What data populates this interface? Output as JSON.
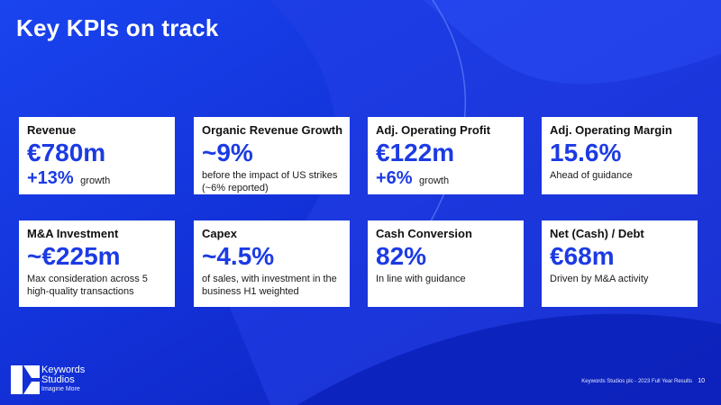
{
  "slide": {
    "title": "Key KPIs on track"
  },
  "kpis": [
    {
      "title": "Revenue",
      "value": "€780m",
      "growth_value": "+13%",
      "growth_text": "growth"
    },
    {
      "title": "Organic Revenue Growth",
      "value": "~9%",
      "description": "before the impact of US strikes (~6% reported)"
    },
    {
      "title": "Adj. Operating Profit",
      "value": "€122m",
      "growth_value": "+6%",
      "growth_text": "growth"
    },
    {
      "title": "Adj. Operating Margin",
      "value": "15.6%",
      "description": "Ahead of guidance"
    },
    {
      "title": "M&A Investment",
      "value": "~€225m",
      "description": "Max consideration across 5 high-quality transactions"
    },
    {
      "title": "Capex",
      "value": "~4.5%",
      "description": "of sales, with investment in the business H1 weighted"
    },
    {
      "title": "Cash Conversion",
      "value": "82%",
      "description": "In line with guidance"
    },
    {
      "title": "Net (Cash) / Debt",
      "value": "€68m",
      "description": "Driven by M&A activity"
    }
  ],
  "brand": {
    "line1": "Keywords",
    "line2": "Studios",
    "tagline": "Imagine More"
  },
  "footer": {
    "text": "Keywords Studios plc - 2023 Full Year Results",
    "page": "10"
  },
  "colors": {
    "background": "#1433d6",
    "accent": "#1c3be3",
    "card": "#ffffff"
  }
}
